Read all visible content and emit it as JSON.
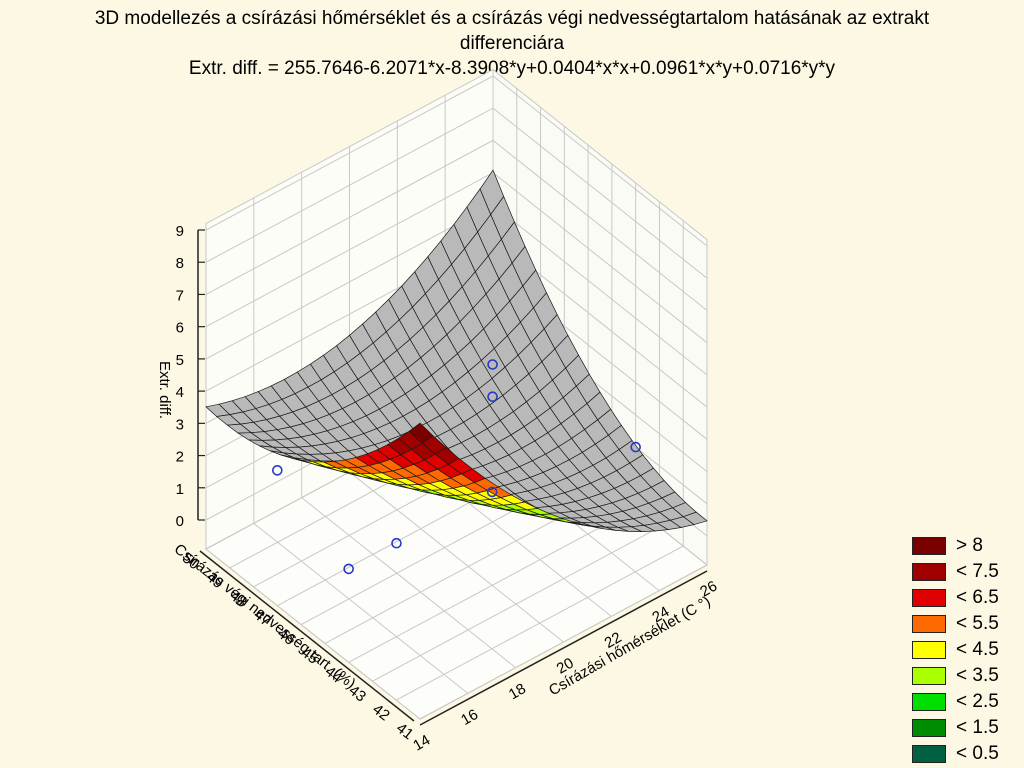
{
  "chart_data": {
    "type": "surface3d",
    "title": "3D modellezés a  csírázási hőmérséklet és a csírázás végi nedvességtartalom hatásának az extrakt differenciára",
    "title_line1": "3D modellezés a  csírázási hőmérséklet és a csírázás végi nedvességtartalom hatásának az extrakt",
    "title_line2": "differenciára",
    "subtitle": "Extr. diff. = 255.7646-6.2071*x-8.3908*y+0.0404*x*x+0.0961*x*y+0.0716*y*y",
    "xlabel": "Csírázási hőmérséklet (C °)",
    "ylabel": "Csírázás végi nedvesség tart. (%)",
    "zlabel": "Extr. diff.",
    "xlim": [
      14,
      26
    ],
    "ylim": [
      41,
      50
    ],
    "zlim": [
      0,
      9
    ],
    "x_ticks": [
      "14",
      "16",
      "18",
      "20",
      "22",
      "24",
      "26"
    ],
    "y_ticks": [
      "41",
      "42",
      "43",
      "44",
      "45",
      "46",
      "47",
      "48",
      "49",
      "50"
    ],
    "z_ticks": [
      "0",
      "1",
      "2",
      "3",
      "4",
      "5",
      "6",
      "7",
      "8",
      "9"
    ],
    "coefficients": {
      "intercept": 255.7646,
      "x": -6.2071,
      "y": -8.3908,
      "xx": 0.0404,
      "xy": 0.0961,
      "yy": 0.0716
    },
    "observations": [
      {
        "x": 14,
        "y": 47,
        "z": 3.3
      },
      {
        "x": 14,
        "y": 44,
        "z": 2.0
      },
      {
        "x": 16,
        "y": 44,
        "z": 2.0
      },
      {
        "x": 20,
        "y": 44,
        "z": 2.0
      },
      {
        "x": 23,
        "y": 47,
        "z": 3.0
      },
      {
        "x": 23,
        "y": 47,
        "z": 2.0
      },
      {
        "x": 26,
        "y": 44,
        "z": 1.0
      }
    ],
    "grid": true,
    "legend_position": "bottom-right",
    "legend": [
      {
        "label": "> 8",
        "color": "#7a0000"
      },
      {
        "label": "< 7.5",
        "color": "#a00000"
      },
      {
        "label": "< 6.5",
        "color": "#e00000"
      },
      {
        "label": "< 5.5",
        "color": "#ff6a00"
      },
      {
        "label": "< 4.5",
        "color": "#ffff00"
      },
      {
        "label": "< 3.5",
        "color": "#aaff00"
      },
      {
        "label": "< 2.5",
        "color": "#00e000"
      },
      {
        "label": "< 1.5",
        "color": "#008c00"
      },
      {
        "label": "< 0.5",
        "color": "#006040"
      }
    ]
  }
}
